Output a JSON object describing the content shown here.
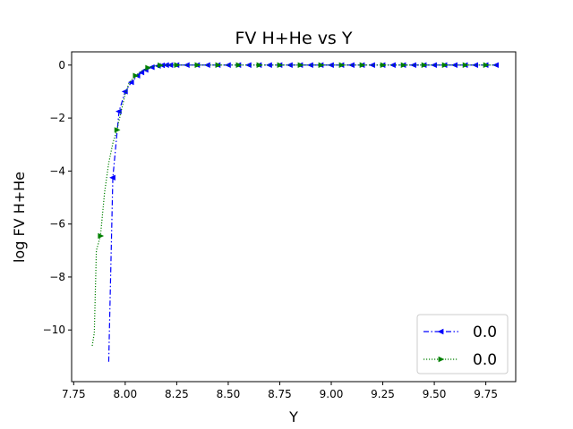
{
  "chart_data": {
    "type": "line",
    "title": "FV H+He vs Y",
    "xlabel": "Y",
    "ylabel": "log FV H+He",
    "xlim": [
      7.74,
      9.895
    ],
    "ylim": [
      -11.95,
      0.5
    ],
    "xticks": [
      7.75,
      8.0,
      8.25,
      8.5,
      8.75,
      9.0,
      9.25,
      9.5,
      9.75
    ],
    "xtick_labels": [
      "7.75",
      "8.00",
      "8.25",
      "8.50",
      "8.75",
      "9.00",
      "9.25",
      "9.50",
      "9.75"
    ],
    "yticks": [
      0,
      -2,
      -4,
      -6,
      -8,
      -10
    ],
    "ytick_labels": [
      "0",
      "−2",
      "−4",
      "−6",
      "−8",
      "−10"
    ],
    "grid": false,
    "legend_position": "bottom-right",
    "series": [
      {
        "name": "0.0",
        "color": "#0000ff",
        "line_style": "dashdot",
        "marker": "triangle-left",
        "x": [
          7.92,
          7.94,
          7.97,
          8.0,
          8.03,
          8.06,
          8.08,
          8.1,
          8.13,
          8.16,
          8.18,
          8.2,
          8.22,
          8.25,
          8.3,
          8.35,
          8.4,
          8.45,
          8.5,
          8.55,
          8.6,
          8.65,
          8.7,
          8.75,
          8.8,
          8.85,
          8.9,
          8.95,
          9.0,
          9.05,
          9.1,
          9.15,
          9.2,
          9.25,
          9.3,
          9.35,
          9.4,
          9.45,
          9.5,
          9.55,
          9.6,
          9.65,
          9.7,
          9.75,
          9.8
        ],
        "y": [
          -11.2,
          -4.25,
          -1.75,
          -1.0,
          -0.65,
          -0.4,
          -0.28,
          -0.18,
          -0.08,
          -0.03,
          -0.01,
          0,
          0,
          0,
          0,
          0,
          0,
          0,
          0,
          0,
          0,
          0,
          0,
          0,
          0,
          0,
          0,
          0,
          0,
          0,
          0,
          0,
          0,
          0,
          0,
          0,
          0,
          0,
          0,
          0,
          0,
          0,
          0,
          0,
          0
        ],
        "marker_indices": [
          1,
          2,
          3,
          4,
          5,
          6,
          7,
          8,
          9,
          10,
          11,
          12,
          13,
          14,
          15,
          16,
          17,
          18,
          19,
          20,
          21,
          22,
          23,
          24,
          25,
          26,
          27,
          28,
          29,
          30,
          31,
          32,
          33,
          34,
          35,
          36,
          37,
          38,
          39,
          40,
          41,
          42,
          43,
          44
        ]
      },
      {
        "name": "0.0",
        "color": "#008000",
        "line_style": "dotted",
        "marker": "triangle-right",
        "x": [
          7.84,
          7.85,
          7.86,
          7.88,
          7.9,
          7.92,
          7.94,
          7.96,
          7.98,
          8.0,
          8.02,
          8.05,
          8.08,
          8.11,
          8.14,
          8.17,
          8.2,
          8.25,
          8.3,
          8.35,
          8.4,
          8.45,
          8.5,
          8.55,
          8.6,
          8.65,
          8.7,
          8.75,
          8.8,
          8.85,
          8.9,
          8.95,
          9.0,
          9.05,
          9.1,
          9.15,
          9.2,
          9.25,
          9.3,
          9.35,
          9.4,
          9.45,
          9.5,
          9.55,
          9.6,
          9.65,
          9.7,
          9.75,
          9.8
        ],
        "y": [
          -10.6,
          -10.1,
          -7.0,
          -6.45,
          -4.8,
          -3.7,
          -2.95,
          -2.45,
          -1.75,
          -1.1,
          -0.65,
          -0.4,
          -0.22,
          -0.1,
          -0.04,
          -0.01,
          0,
          0,
          0,
          0,
          0,
          0,
          0,
          0,
          0,
          0,
          0,
          0,
          0,
          0,
          0,
          0,
          0,
          0,
          0,
          0,
          0,
          0,
          0,
          0,
          0,
          0,
          0,
          0,
          0,
          0,
          0,
          0,
          0
        ],
        "marker_indices": [
          3,
          7,
          11,
          13,
          15,
          17,
          19,
          21,
          23,
          25,
          27,
          29,
          31,
          33,
          35,
          37,
          39,
          41,
          43,
          45,
          47
        ]
      }
    ]
  }
}
